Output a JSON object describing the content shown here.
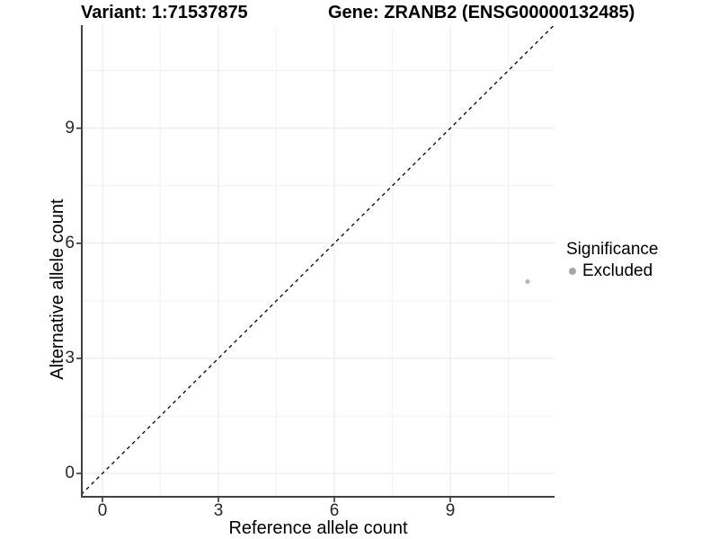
{
  "chart_data": {
    "type": "scatter",
    "titles": {
      "left": "Variant: 1:71537875",
      "right": "Gene: ZRANB2 (ENSG00000132485)"
    },
    "xlabel": "Reference allele count",
    "ylabel": "Alternative allele count",
    "x_ticks": [
      0,
      3,
      6,
      9
    ],
    "y_ticks": [
      0,
      3,
      6,
      9
    ],
    "x_minor_gridlines": [
      1.5,
      4.5,
      7.5,
      10.5
    ],
    "y_minor_gridlines": [
      1.5,
      4.5,
      7.5,
      10.5
    ],
    "xlim": [
      -0.55,
      11.72
    ],
    "ylim": [
      -0.61,
      11.69
    ],
    "grid": {
      "major_color": "#e8e8e8",
      "minor_color": "#f3f3f3",
      "background": "#ffffff"
    },
    "axis_color": "#404040",
    "tick_color": "#333333",
    "reference_line": {
      "kind": "identity",
      "slope": 1,
      "intercept": 0,
      "style": "dashed",
      "color": "#000000"
    },
    "series": [
      {
        "name": "Excluded",
        "color": "#b9b9b9",
        "marker": "circle",
        "points": [
          {
            "x": 11,
            "y": 5
          }
        ]
      }
    ],
    "legend": {
      "title": "Significance",
      "position": "right",
      "items": [
        {
          "label": "Excluded",
          "color": "#a6a6a6",
          "marker": "circle"
        }
      ]
    }
  }
}
